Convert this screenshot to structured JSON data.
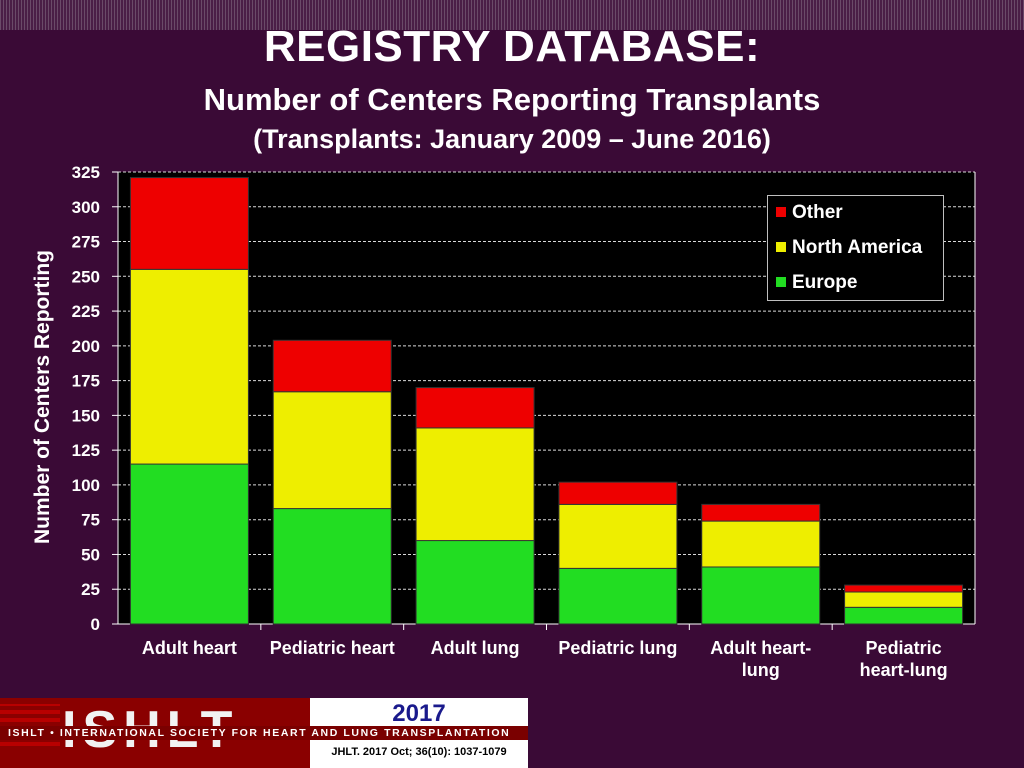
{
  "header": {
    "title": "REGISTRY DATABASE:",
    "subtitle": "Number of Centers Reporting Transplants",
    "subtitle2": "(Transplants: January 2009 – June 2016)"
  },
  "chart_data": {
    "type": "bar",
    "stacked": true,
    "ylabel": "Number of Centers Reporting",
    "xlabel": "",
    "ylim": [
      0,
      325
    ],
    "yticks": [
      0,
      25,
      50,
      75,
      100,
      125,
      150,
      175,
      200,
      225,
      250,
      275,
      300,
      325
    ],
    "grid": true,
    "legend_position": "top-right",
    "categories": [
      [
        "Adult heart"
      ],
      [
        "Pediatric heart"
      ],
      [
        "Adult lung"
      ],
      [
        "Pediatric lung"
      ],
      [
        "Adult heart-",
        "lung"
      ],
      [
        "Pediatric",
        "heart-lung"
      ]
    ],
    "series": [
      {
        "name": "Europe",
        "color": "#22dd22",
        "values": [
          115,
          83,
          60,
          40,
          41,
          12
        ]
      },
      {
        "name": "North America",
        "color": "#eeee00",
        "values": [
          140,
          84,
          81,
          46,
          33,
          11
        ]
      },
      {
        "name": "Other",
        "color": "#ee0000",
        "values": [
          66,
          37,
          29,
          16,
          12,
          5
        ]
      }
    ]
  },
  "legend": {
    "items": [
      {
        "label": "Other",
        "color": "#ee0000"
      },
      {
        "label": "North America",
        "color": "#eeee00"
      },
      {
        "label": "Europe",
        "color": "#22dd22"
      }
    ]
  },
  "footer": {
    "logo_text": "ISHLT",
    "org": "ISHLT • INTERNATIONAL SOCIETY FOR HEART AND LUNG TRANSPLANTATION",
    "year": "2017",
    "citation": "JHLT. 2017 Oct; 36(10): 1037-1079"
  }
}
